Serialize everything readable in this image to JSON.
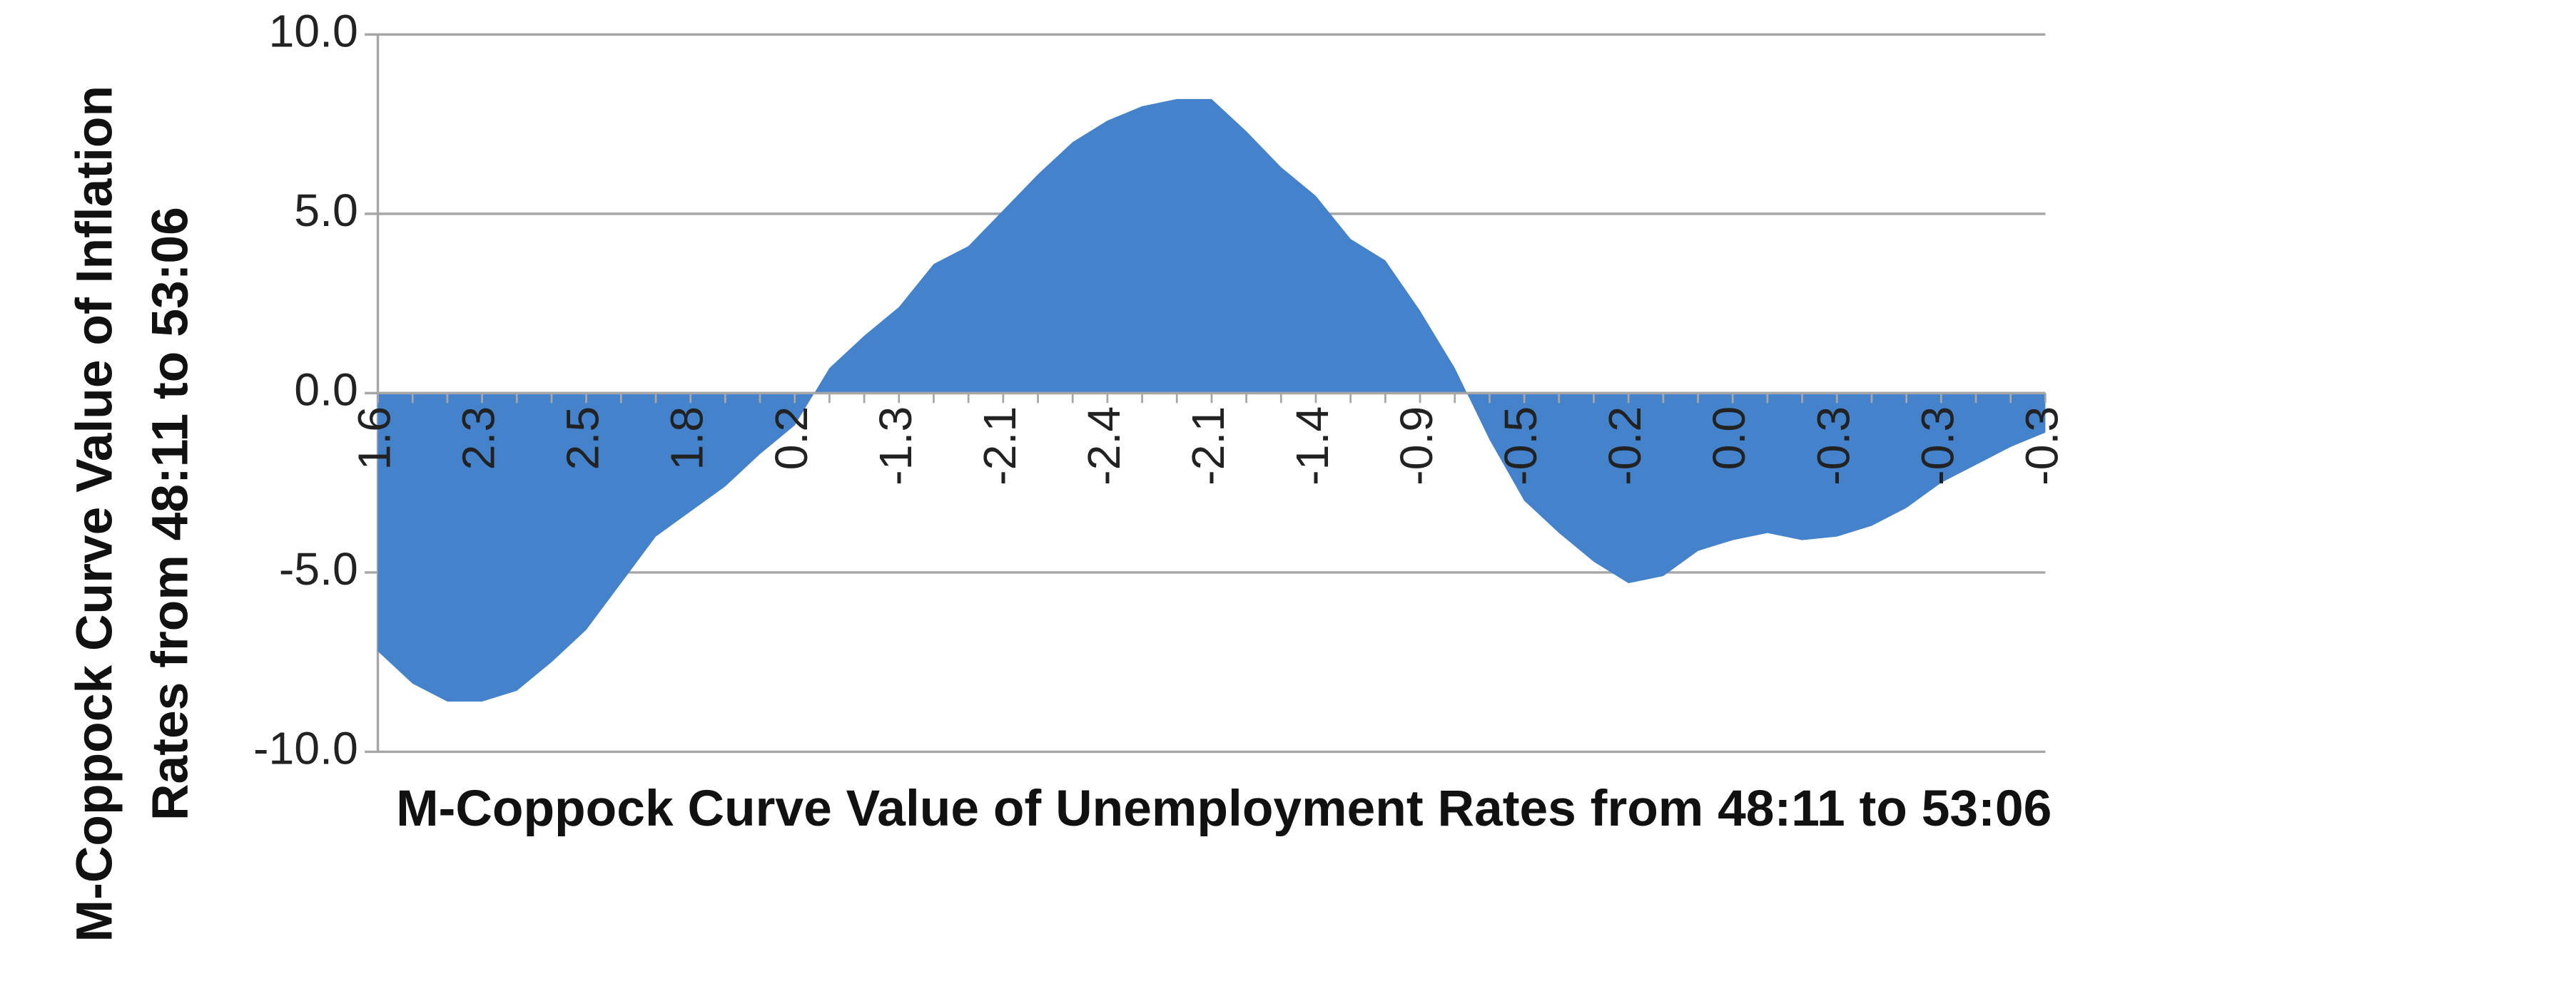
{
  "chart_data": {
    "type": "area",
    "x_label": "M-Coppock Curve Value of Unemployment Rates from 48:11 to 53:06",
    "y_label": "M-Coppock Curve Value of Inflation Rates from 48:11 to 53:06",
    "categories": [
      "1.6",
      null,
      null,
      "2.3",
      null,
      null,
      "2.5",
      null,
      null,
      "1.8",
      null,
      null,
      "0.2",
      null,
      null,
      "-1.3",
      null,
      null,
      "-2.1",
      null,
      null,
      "-2.4",
      null,
      null,
      "-2.1",
      null,
      null,
      "-1.4",
      null,
      null,
      "-0.9",
      null,
      null,
      "-0.5",
      null,
      null,
      "-0.2",
      null,
      null,
      "0.0",
      null,
      null,
      "-0.3",
      null,
      null,
      "-0.3",
      null,
      null,
      "-0.3"
    ],
    "values": [
      -7.2,
      -8.1,
      -8.6,
      -8.6,
      -8.3,
      -7.5,
      -6.6,
      -5.3,
      -4.0,
      -3.3,
      -2.6,
      -1.7,
      -0.9,
      0.7,
      1.6,
      2.4,
      3.6,
      4.1,
      5.1,
      6.1,
      7.0,
      7.6,
      8.0,
      8.2,
      8.2,
      7.3,
      6.3,
      5.5,
      4.3,
      3.7,
      2.3,
      0.7,
      -1.3,
      -3.0,
      -3.9,
      -4.7,
      -5.3,
      -5.1,
      -4.4,
      -4.1,
      -3.9,
      -4.1,
      -4.0,
      -3.7,
      -3.2,
      -2.5,
      -2.0,
      -1.5,
      -1.1
    ],
    "color": "#4482cc",
    "ylim": [
      -10,
      10
    ],
    "yticks": [
      {
        "value": -10,
        "label": "-10.0"
      },
      {
        "value": -5,
        "label": "-5.0"
      },
      {
        "value": 0,
        "label": "0.0"
      },
      {
        "value": 5,
        "label": "5.0"
      },
      {
        "value": 10,
        "label": "10.0"
      }
    ],
    "grid": true
  }
}
